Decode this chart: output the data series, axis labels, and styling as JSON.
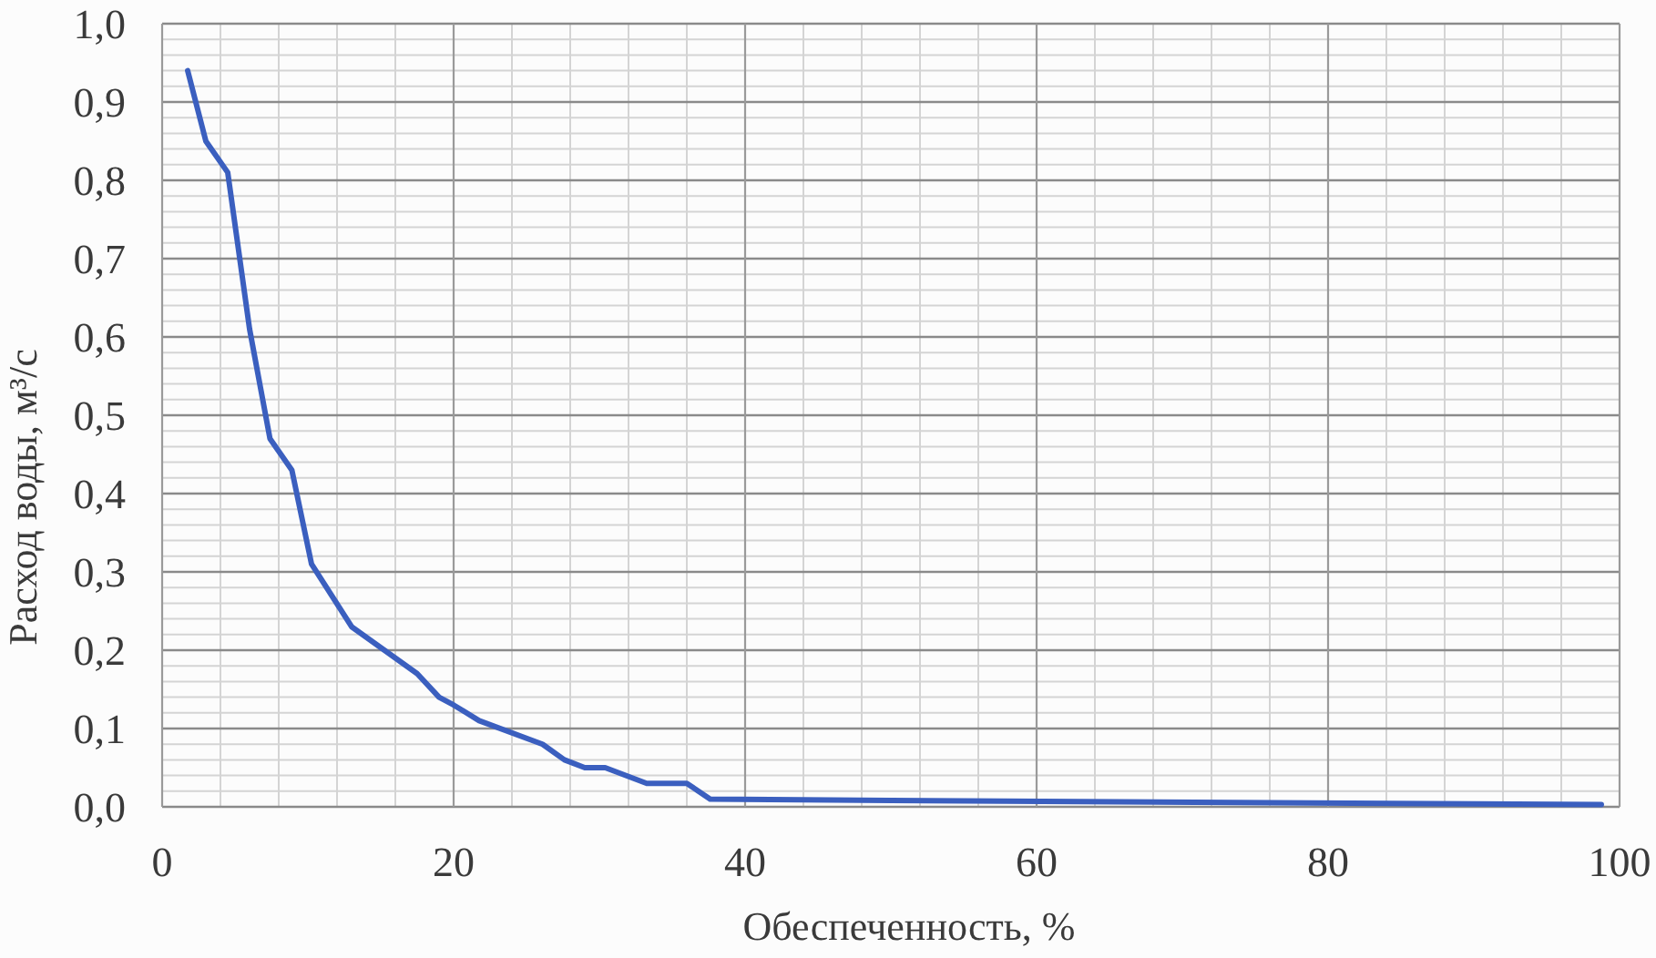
{
  "chart_data": {
    "type": "line",
    "xlabel": "Обеспеченность, %",
    "ylabel": "Расход воды, м³/с",
    "x": [
      1.75,
      3,
      4.5,
      6,
      7.4,
      8.9,
      10.25,
      13,
      17.5,
      19,
      20,
      21.75,
      26.1,
      27.6,
      29,
      30.4,
      33.25,
      36,
      37.6,
      50,
      98.75
    ],
    "values": [
      0.94,
      0.85,
      0.81,
      0.61,
      0.47,
      0.43,
      0.31,
      0.23,
      0.17,
      0.14,
      0.13,
      0.11,
      0.08,
      0.06,
      0.05,
      0.05,
      0.03,
      0.03,
      0.01,
      0.008,
      0.003
    ],
    "color": "#3b5fbf",
    "xlim": [
      0,
      100
    ],
    "xticks": [
      0,
      {
        "value": 4,
        "label": null
      },
      {
        "value": 8,
        "label": null
      },
      {
        "value": 12,
        "label": null
      },
      {
        "value": 16,
        "label": null
      },
      20,
      {
        "value": 24,
        "label": null
      },
      {
        "value": 28,
        "label": null
      },
      {
        "value": 32,
        "label": null
      },
      {
        "value": 36,
        "label": null
      },
      40,
      {
        "value": 44,
        "label": null
      },
      {
        "value": 48,
        "label": null
      },
      {
        "value": 52,
        "label": null
      },
      {
        "value": 56,
        "label": null
      },
      60,
      {
        "value": 64,
        "label": null
      },
      {
        "value": 68,
        "label": null
      },
      {
        "value": 72,
        "label": null
      },
      {
        "value": 76,
        "label": null
      },
      80,
      {
        "value": 84,
        "label": null
      },
      {
        "value": 88,
        "label": null
      },
      {
        "value": 92,
        "label": null
      },
      {
        "value": 96,
        "label": null
      },
      100
    ],
    "ylim": [
      0,
      1
    ],
    "yticks": [
      {
        "value": 0,
        "label": "0,0"
      },
      {
        "value": 0.02,
        "label": null
      },
      {
        "value": 0.04,
        "label": null
      },
      {
        "value": 0.06,
        "label": null
      },
      {
        "value": 0.08,
        "label": null
      },
      {
        "value": 0.1,
        "label": "0,1"
      },
      {
        "value": 0.12,
        "label": null
      },
      {
        "value": 0.14,
        "label": null
      },
      {
        "value": 0.16,
        "label": null
      },
      {
        "value": 0.18,
        "label": null
      },
      {
        "value": 0.2,
        "label": "0,2"
      },
      {
        "value": 0.22,
        "label": null
      },
      {
        "value": 0.24,
        "label": null
      },
      {
        "value": 0.26,
        "label": null
      },
      {
        "value": 0.28,
        "label": null
      },
      {
        "value": 0.3,
        "label": "0,3"
      },
      {
        "value": 0.32,
        "label": null
      },
      {
        "value": 0.34,
        "label": null
      },
      {
        "value": 0.36,
        "label": null
      },
      {
        "value": 0.38,
        "label": null
      },
      {
        "value": 0.4,
        "label": "0,4"
      },
      {
        "value": 0.42,
        "label": null
      },
      {
        "value": 0.44,
        "label": null
      },
      {
        "value": 0.46,
        "label": null
      },
      {
        "value": 0.48,
        "label": null
      },
      {
        "value": 0.5,
        "label": "0,5"
      },
      {
        "value": 0.52,
        "label": null
      },
      {
        "value": 0.54,
        "label": null
      },
      {
        "value": 0.56,
        "label": null
      },
      {
        "value": 0.58,
        "label": null
      },
      {
        "value": 0.6,
        "label": "0,6"
      },
      {
        "value": 0.62,
        "label": null
      },
      {
        "value": 0.64,
        "label": null
      },
      {
        "value": 0.66,
        "label": null
      },
      {
        "value": 0.68,
        "label": null
      },
      {
        "value": 0.7,
        "label": "0,7"
      },
      {
        "value": 0.72,
        "label": null
      },
      {
        "value": 0.74,
        "label": null
      },
      {
        "value": 0.76,
        "label": null
      },
      {
        "value": 0.78,
        "label": null
      },
      {
        "value": 0.8,
        "label": "0,8"
      },
      {
        "value": 0.82,
        "label": null
      },
      {
        "value": 0.84,
        "label": null
      },
      {
        "value": 0.86,
        "label": null
      },
      {
        "value": 0.88,
        "label": null
      },
      {
        "value": 0.9,
        "label": "0,9"
      },
      {
        "value": 0.92,
        "label": null
      },
      {
        "value": 0.94,
        "label": null
      },
      {
        "value": 0.96,
        "label": null
      },
      {
        "value": 0.98,
        "label": null
      },
      {
        "value": 1,
        "label": "1,0"
      }
    ],
    "grid": true
  }
}
